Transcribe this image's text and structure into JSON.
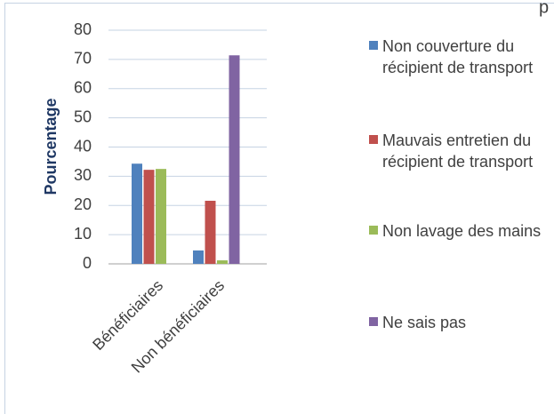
{
  "chart_data": {
    "type": "bar",
    "annotations": [
      "p"
    ],
    "y_label": "Pourcentage",
    "categories": [
      "Bénéficiaires",
      "Non bénéficiaires"
    ],
    "series": [
      {
        "name": "Non couverture du récipient de transport",
        "color": "#4f81bd",
        "values": [
          34.3,
          4.6
        ]
      },
      {
        "name": "Mauvais entretien du récipient de transport",
        "color": "#c0504d",
        "values": [
          32.2,
          21.6
        ]
      },
      {
        "name": "Non lavage des mains",
        "color": "#9bbb59",
        "values": [
          32.5,
          1.2
        ]
      },
      {
        "name": "Ne sais pas",
        "color": "#8064a2",
        "values": [
          0,
          71.4
        ]
      }
    ],
    "ylim": [
      0,
      80
    ],
    "yticks": [
      0,
      10,
      20,
      30,
      40,
      50,
      60,
      70,
      80
    ],
    "grid": true
  }
}
